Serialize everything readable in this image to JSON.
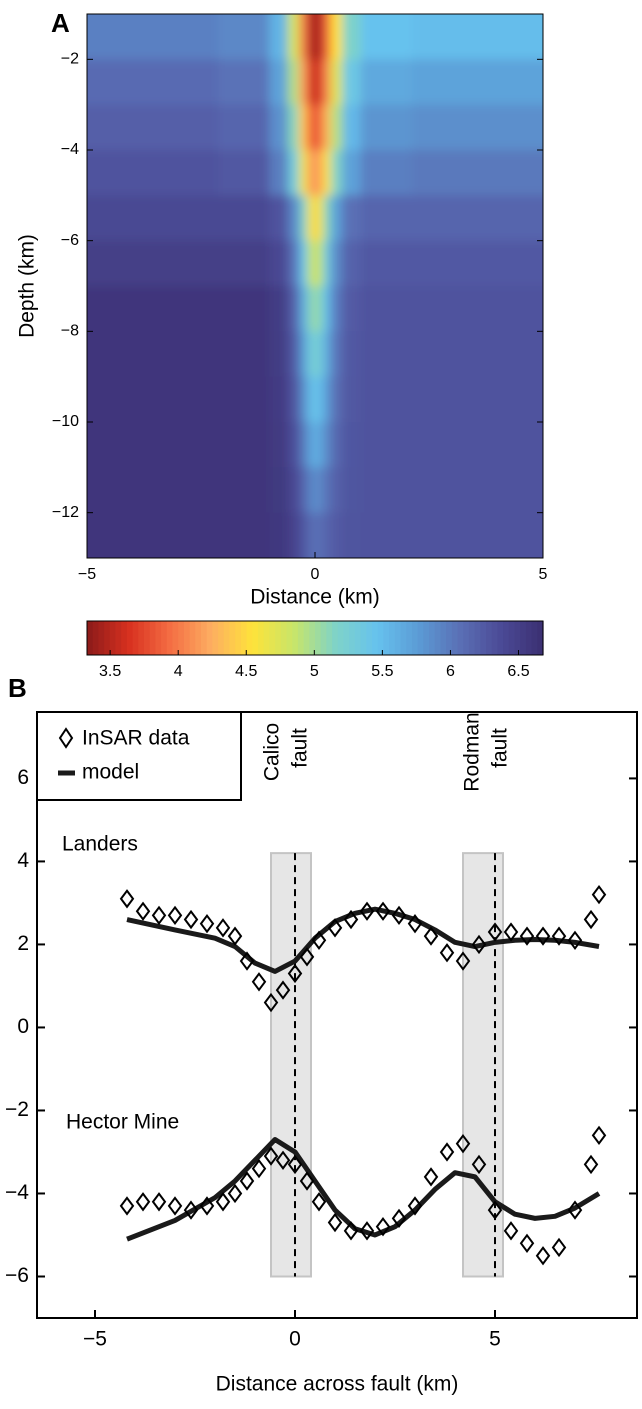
{
  "chart_data": [
    {
      "type": "heatmap",
      "panel_label": "A",
      "xlabel": "Distance (km)",
      "ylabel": "Depth (km)",
      "xlim": [
        -5,
        5
      ],
      "ylim": [
        -13,
        -1
      ],
      "xticks": [
        {
          "value": -5,
          "label": "−5"
        },
        0,
        5
      ],
      "yticks": [
        {
          "value": -12,
          "label": "−12"
        },
        {
          "value": -10,
          "label": "−10"
        },
        {
          "value": -8,
          "label": "−8"
        },
        {
          "value": -6,
          "label": "−6"
        },
        {
          "value": -4,
          "label": "−4"
        },
        {
          "value": -2,
          "label": "−2"
        }
      ],
      "x": [
        -3,
        -1.25,
        -0.75,
        -0.45,
        -0.25,
        -0.1,
        0,
        0.1,
        0.25,
        0.45,
        0.75,
        1.25,
        3
      ],
      "y": [
        -1.5,
        -2.5,
        -3.5,
        -4.5,
        -5.5,
        -6.5,
        -7.5,
        -8.5,
        -9.5,
        -10.5,
        -11.5,
        -12.5
      ],
      "z": [
        [
          5.95,
          5.9,
          5.57,
          4.8,
          4.04,
          3.53,
          3.4,
          3.5,
          3.92,
          4.55,
          5.18,
          5.46,
          5.5
        ],
        [
          6.1,
          6.05,
          5.72,
          4.95,
          4.19,
          3.68,
          3.55,
          3.66,
          4.09,
          4.73,
          5.38,
          5.66,
          5.7
        ],
        [
          6.2,
          6.15,
          5.84,
          5.12,
          4.4,
          3.92,
          3.8,
          3.9,
          4.31,
          4.93,
          5.54,
          5.81,
          5.85
        ],
        [
          6.3,
          6.26,
          5.97,
          5.31,
          4.65,
          4.21,
          4.1,
          4.2,
          4.58,
          5.15,
          5.72,
          5.96,
          6.0
        ],
        [
          6.4,
          6.4,
          6.3,
          5.91,
          5.23,
          4.65,
          4.45,
          4.62,
          5.13,
          5.73,
          6.07,
          6.15,
          6.15
        ],
        [
          6.5,
          6.5,
          6.41,
          6.06,
          5.45,
          4.93,
          4.75,
          4.9,
          5.35,
          5.88,
          6.18,
          6.25,
          6.25
        ],
        [
          6.6,
          6.6,
          6.52,
          6.2,
          5.64,
          5.16,
          5.0,
          5.13,
          5.52,
          5.98,
          6.24,
          6.3,
          6.3
        ],
        [
          6.6,
          6.6,
          6.53,
          6.25,
          5.76,
          5.34,
          5.2,
          5.31,
          5.64,
          6.03,
          6.25,
          6.3,
          6.3
        ],
        [
          6.6,
          6.6,
          6.54,
          6.3,
          5.88,
          5.52,
          5.4,
          5.49,
          5.76,
          6.08,
          6.26,
          6.3,
          6.3
        ],
        [
          6.6,
          6.6,
          6.55,
          6.35,
          6.0,
          5.7,
          5.6,
          5.67,
          5.88,
          6.13,
          6.27,
          6.3,
          6.3
        ],
        [
          6.6,
          6.6,
          6.56,
          6.41,
          6.15,
          5.93,
          5.85,
          5.9,
          6.03,
          6.19,
          6.28,
          6.3,
          6.3
        ],
        [
          6.6,
          6.6,
          6.57,
          6.46,
          6.27,
          6.1,
          6.05,
          6.08,
          6.15,
          6.24,
          6.29,
          6.3,
          6.3
        ]
      ],
      "colorbar": {
        "clim": [
          3.33,
          6.68
        ],
        "ticks": [
          3.5,
          4,
          4.5,
          5,
          5.5,
          6,
          6.5
        ],
        "colormap": [
          "#8b1a1a",
          "#d7301f",
          "#f46d43",
          "#fdae61",
          "#fee33a",
          "#c7e56a",
          "#7fd3c8",
          "#66c2ee",
          "#5b9bd5",
          "#5a6fb5",
          "#4b4a96",
          "#3b2f72"
        ]
      }
    },
    {
      "type": "profile",
      "panel_label": "B",
      "xlabel": "Distance across fault (km)",
      "xlim": [
        -6.45,
        8.55
      ],
      "ylim": [
        -7,
        7.6
      ],
      "xticks": [
        {
          "value": -5,
          "label": "−5"
        },
        0,
        5
      ],
      "yticks": [
        {
          "value": -6,
          "label": "−6"
        },
        {
          "value": -4,
          "label": "−4"
        },
        {
          "value": -2,
          "label": "−2"
        },
        0,
        2,
        4,
        6
      ],
      "series": [
        {
          "name": "InSAR data",
          "color": "#000000"
        },
        {
          "name": "model",
          "color": "#1a1a1a"
        }
      ],
      "faults": [
        {
          "label": [
            "Calico",
            "fault"
          ],
          "x": 0,
          "band": [
            -0.6,
            0.4
          ],
          "yrange": [
            -6,
            4.2
          ]
        },
        {
          "label": [
            "Rodman",
            "fault"
          ],
          "x": 5,
          "band": [
            4.2,
            5.2
          ],
          "yrange": [
            -6,
            4.2
          ]
        }
      ],
      "profiles": [
        {
          "label": "Landers",
          "x": [
            -4.2,
            -3.8,
            -3.4,
            -3.0,
            -2.6,
            -2.2,
            -1.8,
            -1.5,
            -1.2,
            -0.9,
            -0.6,
            -0.3,
            0,
            0.3,
            0.6,
            1,
            1.4,
            1.8,
            2.2,
            2.6,
            3,
            3.4,
            3.8,
            4.2,
            4.6,
            5,
            5.4,
            5.8,
            6.2,
            6.6,
            7,
            7.4,
            7.6
          ],
          "data": [
            3.1,
            2.8,
            2.7,
            2.7,
            2.6,
            2.5,
            2.4,
            2.2,
            1.6,
            1.1,
            0.6,
            0.9,
            1.3,
            1.7,
            2.1,
            2.4,
            2.6,
            2.8,
            2.8,
            2.7,
            2.5,
            2.2,
            1.8,
            1.6,
            2.0,
            2.3,
            2.3,
            2.2,
            2.2,
            2.2,
            2.1,
            2.6,
            3.2
          ],
          "model_x": [
            -4.2,
            -3,
            -2,
            -1.5,
            -1,
            -0.5,
            0,
            0.5,
            1,
            1.5,
            2,
            2.5,
            3,
            3.5,
            4,
            4.5,
            5,
            5.5,
            6,
            6.5,
            7,
            7.6
          ],
          "model": [
            2.6,
            2.35,
            2.15,
            1.95,
            1.55,
            1.35,
            1.6,
            2.15,
            2.55,
            2.75,
            2.85,
            2.75,
            2.6,
            2.35,
            2.05,
            1.95,
            2.05,
            2.1,
            2.12,
            2.1,
            2.05,
            1.95
          ]
        },
        {
          "label": "Hector Mine",
          "x": [
            -4.2,
            -3.8,
            -3.4,
            -3.0,
            -2.6,
            -2.2,
            -1.8,
            -1.5,
            -1.2,
            -0.9,
            -0.6,
            -0.3,
            0,
            0.3,
            0.6,
            1,
            1.4,
            1.8,
            2.2,
            2.6,
            3,
            3.4,
            3.8,
            4.2,
            4.6,
            5,
            5.4,
            5.8,
            6.2,
            6.6,
            7,
            7.4,
            7.6
          ],
          "data": [
            -4.3,
            -4.2,
            -4.2,
            -4.3,
            -4.4,
            -4.3,
            -4.2,
            -4.0,
            -3.7,
            -3.4,
            -3.1,
            -3.2,
            -3.3,
            -3.7,
            -4.2,
            -4.7,
            -4.9,
            -4.9,
            -4.8,
            -4.6,
            -4.3,
            -3.6,
            -3.0,
            -2.8,
            -3.3,
            -4.4,
            -4.9,
            -5.2,
            -5.5,
            -5.3,
            -4.4,
            -3.3,
            -2.6
          ],
          "model_x": [
            -4.2,
            -3,
            -2,
            -1.5,
            -1,
            -0.5,
            0,
            0.5,
            1,
            1.5,
            2,
            2.5,
            3,
            3.5,
            4,
            4.5,
            5,
            5.5,
            6,
            6.5,
            7,
            7.6
          ],
          "model": [
            -5.1,
            -4.65,
            -4.1,
            -3.7,
            -3.2,
            -2.7,
            -3.0,
            -3.7,
            -4.4,
            -4.85,
            -5.0,
            -4.8,
            -4.4,
            -3.9,
            -3.5,
            -3.6,
            -4.2,
            -4.5,
            -4.6,
            -4.55,
            -4.35,
            -4.0
          ]
        }
      ]
    }
  ]
}
